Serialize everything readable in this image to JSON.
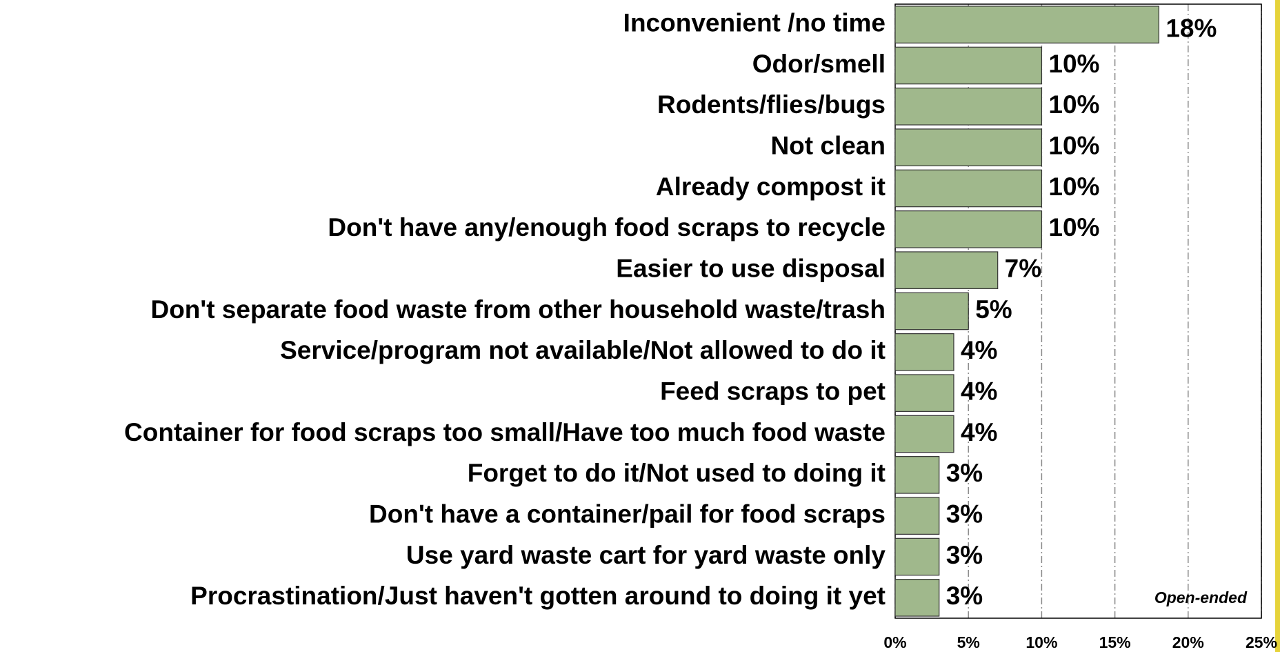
{
  "chart_data": {
    "type": "bar",
    "orientation": "horizontal",
    "categories": [
      "Inconvenient /no time",
      "Odor/smell",
      "Rodents/flies/bugs",
      "Not clean",
      "Already compost it",
      "Don't have any/enough food scraps to recycle",
      "Easier to use disposal",
      "Don't separate food waste from other household waste/trash",
      "Service/program not available/Not allowed to do it",
      "Feed scraps to pet",
      "Container for food scraps too small/Have too much food waste",
      "Forget to do it/Not used to doing it",
      "Don't have a container/pail for food scraps",
      "Use yard waste cart for yard waste only",
      "Procrastination/Just haven't gotten around to doing it yet"
    ],
    "values": [
      18,
      10,
      10,
      10,
      10,
      10,
      7,
      5,
      4,
      4,
      4,
      3,
      3,
      3,
      3
    ],
    "value_labels": [
      "18%",
      "10%",
      "10%",
      "10%",
      "10%",
      "10%",
      "7%",
      "5%",
      "4%",
      "4%",
      "4%",
      "3%",
      "3%",
      "3%",
      "3%"
    ],
    "color": "#a0b88c",
    "xlim": [
      0,
      25
    ],
    "xticks": [
      {
        "value": 0,
        "label": "0%"
      },
      {
        "value": 5,
        "label": "5%"
      },
      {
        "value": 10,
        "label": "10%"
      },
      {
        "value": 15,
        "label": "15%"
      },
      {
        "value": 20,
        "label": "20%"
      },
      {
        "value": 25,
        "label": "25%"
      }
    ],
    "grid": true,
    "annotation": "Open-ended"
  }
}
